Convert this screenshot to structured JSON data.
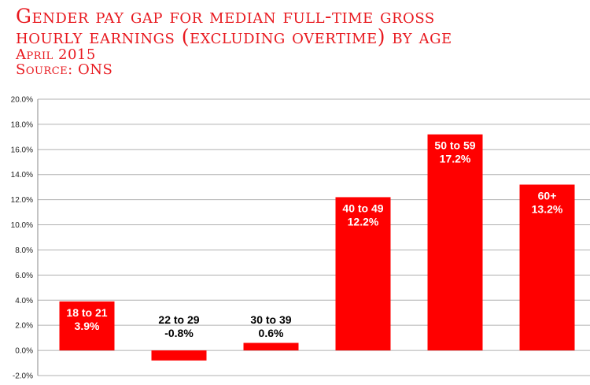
{
  "chart_data": {
    "type": "bar",
    "title_lines": [
      "Gender pay gap for median full-time gross",
      "hourly earnings (excluding overtime) by age"
    ],
    "subtitle_lines": [
      "April 2015",
      "Source: ONS"
    ],
    "categories": [
      "18 to 21",
      "22 to 29",
      "30 to 39",
      "40 to 49",
      "50 to 59",
      "60+"
    ],
    "values": [
      3.9,
      -0.8,
      0.6,
      12.2,
      17.2,
      13.2
    ],
    "value_labels": [
      "3.9%",
      "-0.8%",
      "0.6%",
      "12.2%",
      "17.2%",
      "13.2%"
    ],
    "ylim": [
      -2,
      20
    ],
    "yticks": [
      -2,
      0,
      2,
      4,
      6,
      8,
      10,
      12,
      14,
      16,
      18,
      20
    ],
    "ytick_labels": [
      "-2.0%",
      "0.0%",
      "2.0%",
      "4.0%",
      "6.0%",
      "8.0%",
      "10.0%",
      "12.0%",
      "14.0%",
      "16.0%",
      "18.0%",
      "20.0%"
    ],
    "grid": true,
    "legend": "none",
    "colors": {
      "bar": "#ff0000",
      "title": "#e8191f",
      "grid": "#b0b0b0",
      "label_inside": "#ffffff",
      "label_outside": "#000000"
    }
  }
}
